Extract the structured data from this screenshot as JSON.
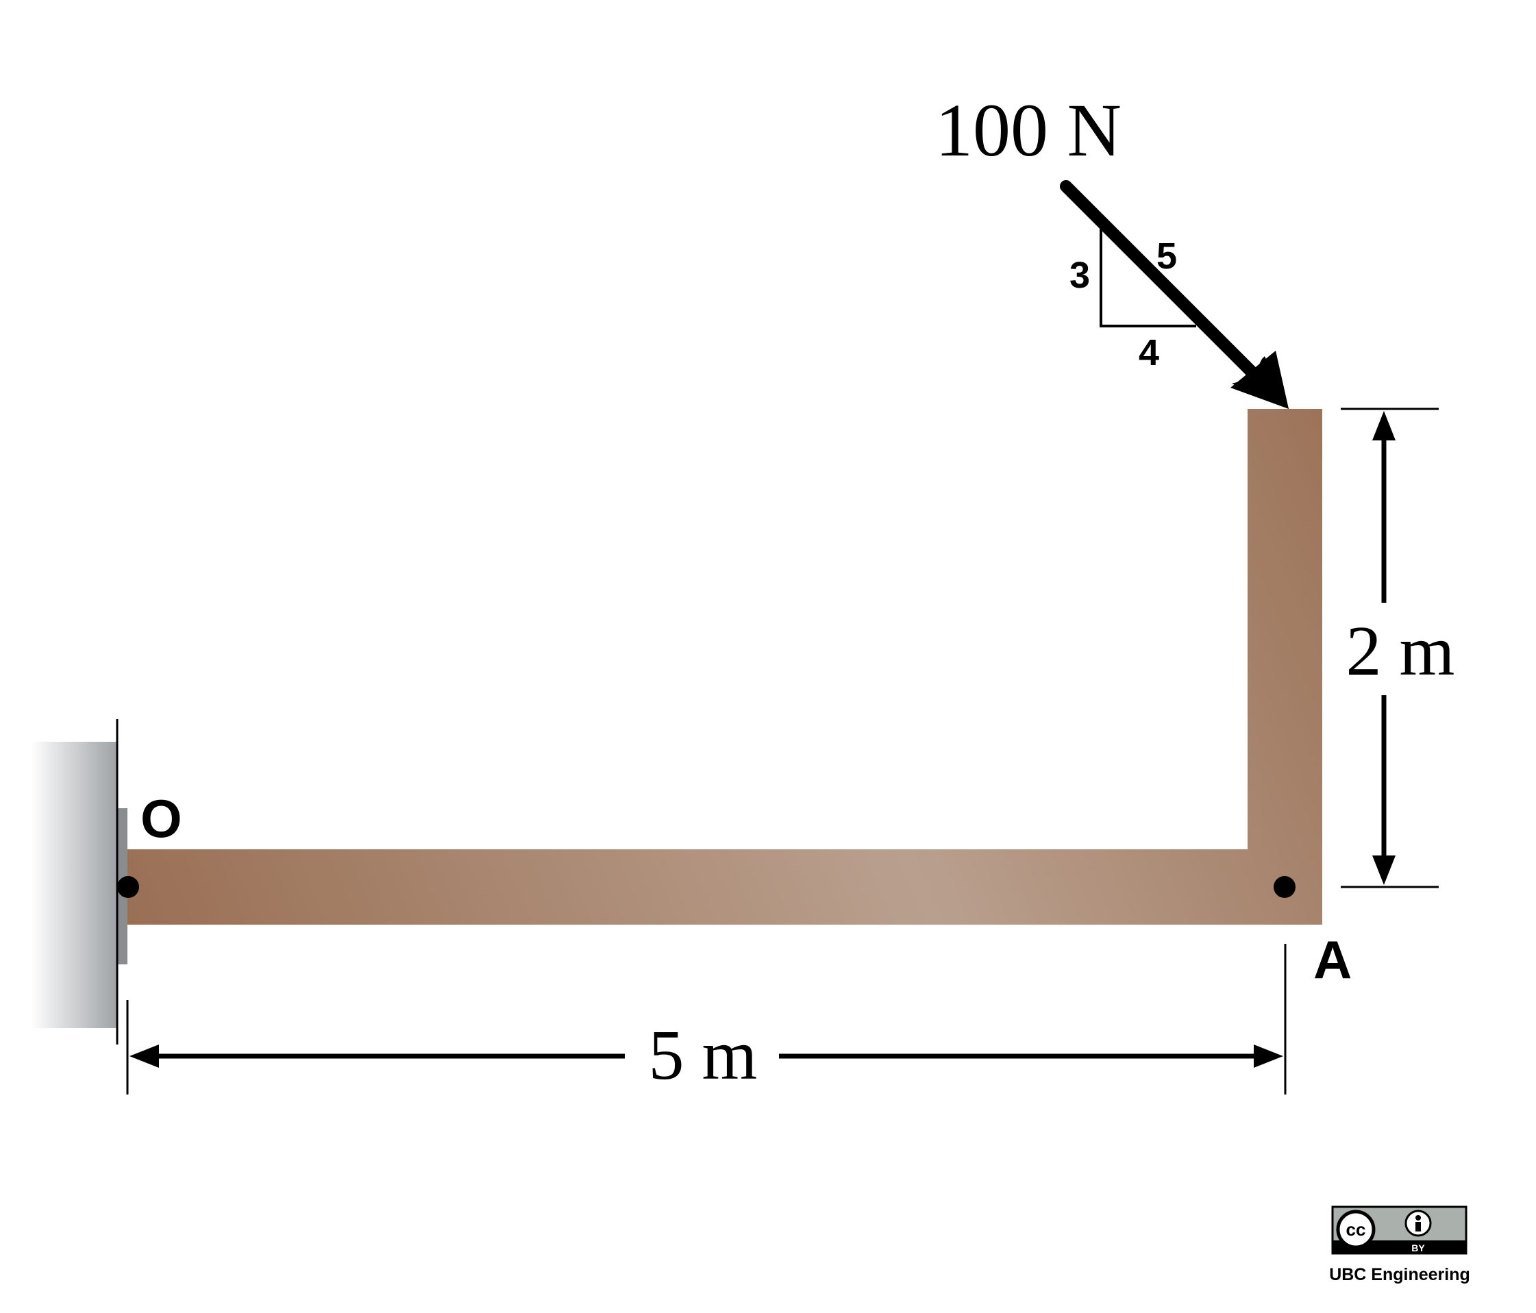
{
  "labels": {
    "force": "100 N",
    "slope_hyp": "5",
    "slope_rise": "3",
    "slope_run": "4",
    "point_o": "O",
    "point_a": "A",
    "dim_height": "2 m",
    "dim_length": "5 m"
  },
  "license": {
    "cc": "cc",
    "by": "BY",
    "credit": "UBC Engineering"
  },
  "colors": {
    "beam_dark": "#9a7055",
    "beam_light": "#b9a08e",
    "wall_gray": "#9ea2a6",
    "plate_gray": "#8a8d90",
    "ink": "#000000"
  }
}
